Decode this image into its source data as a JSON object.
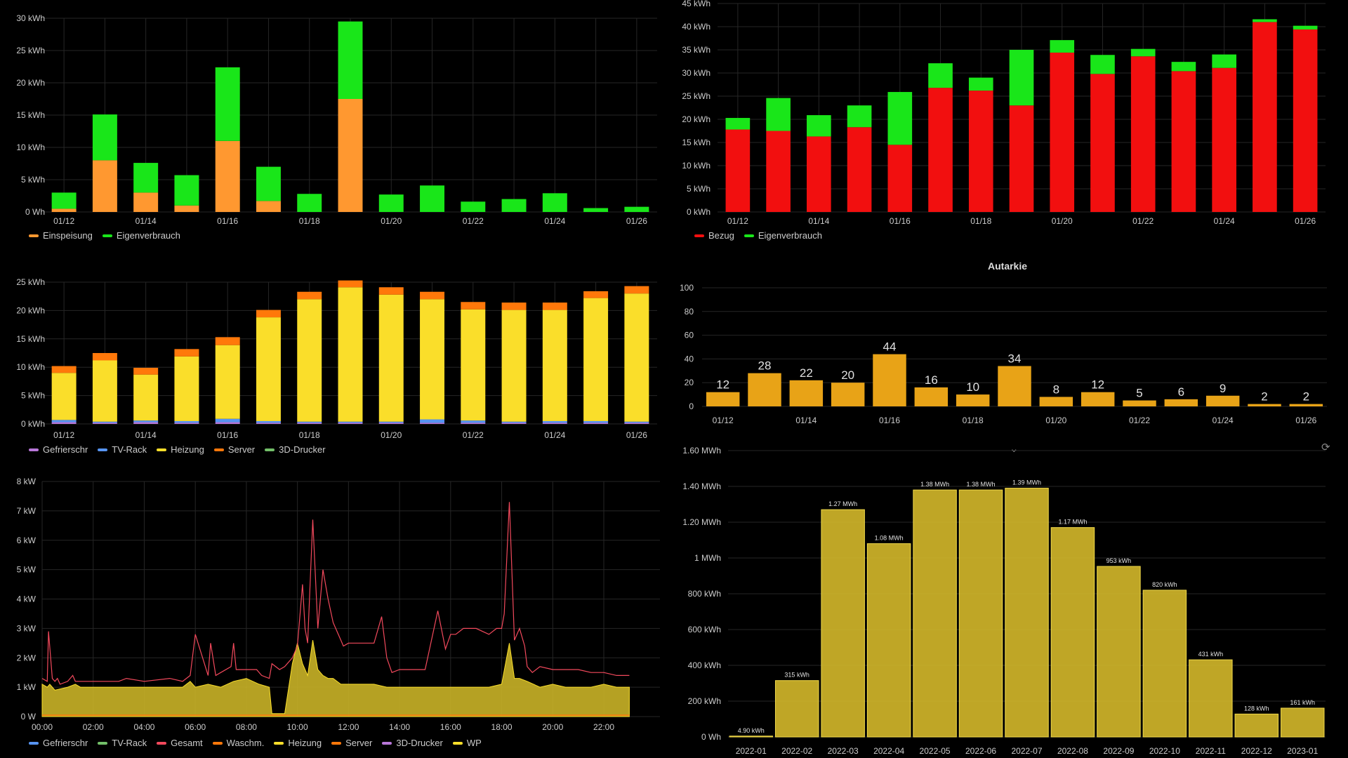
{
  "colors": {
    "grid": "#262626",
    "axis_text": "#cccccc",
    "einspeisung": "#ff9830",
    "eigenverbrauch": "#19e619",
    "bezug": "#f20f0f",
    "gefrierschr": "#b877d9",
    "tv_rack": "#5794f2",
    "heizung": "#fade2a",
    "server": "#ff780a",
    "drucker3d": "#73bf69",
    "gesamt": "#f2495c",
    "autarkie_bar": "#e8a317",
    "monthly_bar": "#d4b82a"
  },
  "icons": {
    "collapse": "chevron-down-icon",
    "refresh": "refresh-icon"
  },
  "chart_data": [
    {
      "id": "pv-daily",
      "type": "bar",
      "stacked": true,
      "categories": [
        "01/12",
        "01/13",
        "01/14",
        "01/15",
        "01/16",
        "01/17",
        "01/18",
        "01/19",
        "01/20",
        "01/21",
        "01/22",
        "01/23",
        "01/24",
        "01/25",
        "01/26"
      ],
      "x_tick_labels": [
        "01/12",
        "",
        "01/14",
        "",
        "01/16",
        "",
        "01/18",
        "",
        "01/20",
        "",
        "01/22",
        "",
        "01/24",
        "",
        "01/26"
      ],
      "y_ticks": [
        "0 Wh",
        "5 kWh",
        "10 kWh",
        "15 kWh",
        "20 kWh",
        "25 kWh",
        "30 kWh"
      ],
      "ylim": [
        0,
        30
      ],
      "grid": true,
      "legend_position": "bottom-left",
      "series": [
        {
          "name": "Einspeisung",
          "color_key": "einspeisung",
          "values": [
            0.5,
            8.0,
            3.0,
            1.0,
            11.0,
            1.7,
            0,
            17.5,
            0,
            0,
            0,
            0,
            0,
            0,
            0
          ]
        },
        {
          "name": "Eigenverbrauch",
          "color_key": "eigenverbrauch",
          "values": [
            2.5,
            7.1,
            4.6,
            4.7,
            11.4,
            5.3,
            2.8,
            12.0,
            2.7,
            4.1,
            1.6,
            2.0,
            2.9,
            0.6,
            0.8
          ]
        }
      ]
    },
    {
      "id": "consumption-daily",
      "type": "bar",
      "stacked": true,
      "categories": [
        "01/12",
        "01/13",
        "01/14",
        "01/15",
        "01/16",
        "01/17",
        "01/18",
        "01/19",
        "01/20",
        "01/21",
        "01/22",
        "01/23",
        "01/24",
        "01/25",
        "01/26"
      ],
      "x_tick_labels": [
        "01/12",
        "",
        "01/14",
        "",
        "01/16",
        "",
        "01/18",
        "",
        "01/20",
        "",
        "01/22",
        "",
        "01/24",
        "",
        "01/26"
      ],
      "y_ticks": [
        "0 kWh",
        "5 kWh",
        "10 kWh",
        "15 kWh",
        "20 kWh",
        "25 kWh",
        "30 kWh",
        "35 kWh",
        "40 kWh",
        "45 kWh"
      ],
      "ylim": [
        0,
        45
      ],
      "grid": true,
      "legend_position": "bottom-left",
      "series": [
        {
          "name": "Bezug",
          "color_key": "bezug",
          "values": [
            17.8,
            17.5,
            16.3,
            18.3,
            14.5,
            26.8,
            26.2,
            23.0,
            34.4,
            29.8,
            33.6,
            30.4,
            31.1,
            41.0,
            39.4
          ]
        },
        {
          "name": "Eigenverbrauch",
          "color_key": "eigenverbrauch",
          "values": [
            2.5,
            7.1,
            4.6,
            4.7,
            11.4,
            5.3,
            2.8,
            12.0,
            2.7,
            4.1,
            1.6,
            2.0,
            2.9,
            0.6,
            0.8
          ]
        }
      ]
    },
    {
      "id": "devices-daily",
      "type": "bar",
      "stacked": true,
      "categories": [
        "01/12",
        "01/13",
        "01/14",
        "01/15",
        "01/16",
        "01/17",
        "01/18",
        "01/19",
        "01/20",
        "01/21",
        "01/22",
        "01/23",
        "01/24",
        "01/25",
        "01/26"
      ],
      "x_tick_labels": [
        "01/12",
        "",
        "01/14",
        "",
        "01/16",
        "",
        "01/18",
        "",
        "01/20",
        "",
        "01/22",
        "",
        "01/24",
        "",
        "01/26"
      ],
      "y_ticks": [
        "0 kWh",
        "5 kWh",
        "10 kWh",
        "15 kWh",
        "20 kWh",
        "25 kWh"
      ],
      "ylim": [
        0,
        25
      ],
      "grid": true,
      "legend_position": "bottom-left",
      "series": [
        {
          "name": "Gefrierschr",
          "color_key": "gefrierschr",
          "values": [
            0.3,
            0.2,
            0.3,
            0.2,
            0.3,
            0.2,
            0.2,
            0.2,
            0.2,
            0.2,
            0.2,
            0.2,
            0.2,
            0.2,
            0.2
          ]
        },
        {
          "name": "TV-Rack",
          "color_key": "tv_rack",
          "values": [
            0.4,
            0.2,
            0.3,
            0.3,
            0.6,
            0.3,
            0.2,
            0.2,
            0.2,
            0.6,
            0.4,
            0.2,
            0.3,
            0.3,
            0.2
          ]
        },
        {
          "name": "Heizung",
          "color_key": "heizung",
          "values": [
            8.3,
            10.8,
            8.1,
            11.4,
            13.0,
            18.3,
            21.6,
            23.7,
            22.4,
            21.2,
            19.6,
            19.7,
            19.6,
            21.7,
            22.6
          ]
        },
        {
          "name": "Server",
          "color_key": "server",
          "values": [
            1.2,
            1.3,
            1.2,
            1.3,
            1.4,
            1.3,
            1.3,
            1.2,
            1.3,
            1.3,
            1.3,
            1.3,
            1.3,
            1.2,
            1.3
          ]
        },
        {
          "name": "3D-Drucker",
          "color_key": "drucker3d",
          "values": [
            0,
            0,
            0,
            0,
            0,
            0,
            0,
            0,
            0,
            0,
            0,
            0,
            0,
            0,
            0
          ]
        }
      ]
    },
    {
      "id": "autarkie",
      "type": "bar",
      "title": "Autarkie",
      "categories": [
        "01/12",
        "01/13",
        "01/14",
        "01/15",
        "01/16",
        "01/17",
        "01/18",
        "01/19",
        "01/20",
        "01/21",
        "01/22",
        "01/23",
        "01/24",
        "01/25",
        "01/26"
      ],
      "x_tick_labels": [
        "01/12",
        "",
        "01/14",
        "",
        "01/16",
        "",
        "01/18",
        "",
        "01/20",
        "",
        "01/22",
        "",
        "01/24",
        "",
        "01/26"
      ],
      "values": [
        12,
        28,
        22,
        20,
        44,
        16,
        10,
        34,
        8,
        12,
        5,
        6,
        9,
        2,
        2
      ],
      "value_labels": [
        "12",
        "28",
        "22",
        "20",
        "44",
        "16",
        "10",
        "34",
        "8",
        "12",
        "5",
        "6",
        "9",
        "2",
        "2"
      ],
      "y_ticks": [
        "0",
        "20",
        "40",
        "60",
        "80",
        "100"
      ],
      "ylim": [
        0,
        100
      ],
      "grid": true
    },
    {
      "id": "power-timeseries",
      "type": "area",
      "x_tick_labels": [
        "00:00",
        "02:00",
        "04:00",
        "06:00",
        "08:00",
        "10:00",
        "12:00",
        "14:00",
        "16:00",
        "18:00",
        "20:00",
        "22:00"
      ],
      "xlim_hours": [
        0,
        24.2
      ],
      "data_end_hour": 23.0,
      "y_ticks": [
        "0 W",
        "1 kW",
        "2 kW",
        "3 kW",
        "4 kW",
        "5 kW",
        "6 kW",
        "7 kW",
        "8 kW"
      ],
      "ylim": [
        0,
        8
      ],
      "grid": true,
      "legend_position": "bottom-left",
      "series": [
        {
          "name": "Gefrierschr",
          "color_key": "tv_rack"
        },
        {
          "name": "TV-Rack",
          "color_key": "drucker3d"
        },
        {
          "name": "Gesamt",
          "color_key": "gesamt",
          "x": [
            0,
            0.2,
            0.25,
            0.4,
            0.5,
            0.6,
            0.7,
            1.0,
            1.2,
            1.3,
            1.5,
            2.0,
            3.0,
            3.3,
            4.0,
            5.0,
            5.5,
            5.8,
            6.0,
            6.5,
            6.6,
            6.8,
            7.0,
            7.4,
            7.5,
            7.6,
            8.0,
            8.4,
            8.6,
            8.9,
            9.0,
            9.3,
            9.5,
            9.8,
            10.0,
            10.2,
            10.3,
            10.4,
            10.6,
            10.8,
            11.0,
            11.2,
            11.4,
            11.7,
            11.8,
            12.0,
            12.5,
            13.0,
            13.3,
            13.5,
            13.7,
            14.0,
            14.5,
            15.0,
            15.5,
            15.8,
            16.0,
            16.2,
            16.5,
            17.0,
            17.5,
            17.8,
            18.0,
            18.1,
            18.3,
            18.5,
            18.7,
            18.9,
            19.0,
            19.2,
            19.5,
            20.0,
            20.5,
            21.0,
            21.5,
            22.0,
            22.5,
            23.0
          ],
          "y": [
            1.3,
            1.2,
            2.9,
            1.3,
            1.2,
            1.3,
            1.1,
            1.2,
            1.4,
            1.2,
            1.2,
            1.2,
            1.2,
            1.3,
            1.2,
            1.3,
            1.2,
            1.4,
            2.8,
            1.4,
            2.5,
            1.4,
            1.5,
            1.7,
            2.5,
            1.6,
            1.6,
            1.6,
            1.4,
            1.3,
            1.8,
            1.6,
            1.7,
            2.0,
            2.4,
            4.5,
            3.0,
            2.5,
            6.7,
            3.0,
            5.0,
            4.0,
            3.2,
            2.6,
            2.4,
            2.5,
            2.5,
            2.5,
            3.4,
            2.0,
            1.5,
            1.6,
            1.6,
            1.6,
            3.6,
            2.3,
            2.8,
            2.8,
            3.0,
            3.0,
            2.8,
            3.0,
            3.0,
            3.5,
            7.3,
            2.6,
            3.0,
            2.4,
            1.7,
            1.5,
            1.7,
            1.6,
            1.6,
            1.6,
            1.5,
            1.5,
            1.4,
            1.4
          ]
        },
        {
          "name": "Waschm.",
          "color_key": "server"
        },
        {
          "name": "Heizung",
          "color_key": "heizung",
          "x": [
            0,
            0.2,
            0.3,
            0.5,
            1.0,
            1.3,
            1.5,
            2.0,
            3.0,
            3.3,
            4.0,
            5.0,
            5.5,
            5.8,
            6.0,
            6.5,
            7.0,
            7.5,
            8.0,
            8.5,
            8.9,
            9.0,
            9.3,
            9.5,
            9.8,
            10.0,
            10.2,
            10.4,
            10.6,
            10.8,
            11.0,
            11.2,
            11.4,
            11.7,
            12.0,
            12.5,
            13.0,
            13.5,
            14.0,
            14.5,
            15.0,
            15.5,
            16.0,
            16.5,
            17.0,
            17.5,
            18.0,
            18.3,
            18.5,
            18.7,
            19.0,
            19.5,
            20.0,
            20.5,
            21.0,
            21.5,
            22.0,
            22.5,
            23.0
          ],
          "y": [
            1.1,
            1.0,
            1.1,
            0.9,
            1.0,
            1.1,
            1.0,
            1.0,
            1.0,
            1.0,
            1.0,
            1.0,
            1.0,
            1.2,
            1.0,
            1.1,
            1.0,
            1.2,
            1.3,
            1.1,
            1.0,
            0.1,
            0.1,
            0.1,
            1.8,
            2.5,
            1.8,
            1.4,
            2.6,
            1.6,
            1.4,
            1.3,
            1.3,
            1.1,
            1.1,
            1.1,
            1.1,
            1.0,
            1.0,
            1.0,
            1.0,
            1.0,
            1.0,
            1.0,
            1.0,
            1.0,
            1.1,
            2.5,
            1.3,
            1.3,
            1.2,
            1.0,
            1.1,
            1.0,
            1.0,
            1.0,
            1.1,
            1.0,
            1.0
          ]
        },
        {
          "name": "Server",
          "color_key": "server"
        },
        {
          "name": "3D-Drucker",
          "color_key": "gefrierschr"
        },
        {
          "name": "WP",
          "color_key": "heizung"
        }
      ]
    },
    {
      "id": "monthly",
      "type": "bar",
      "categories": [
        "2022-01",
        "2022-02",
        "2022-03",
        "2022-04",
        "2022-05",
        "2022-06",
        "2022-07",
        "2022-08",
        "2022-09",
        "2022-10",
        "2022-11",
        "2022-12",
        "2023-01"
      ],
      "values_kwh": [
        4.9,
        315,
        1270,
        1080,
        1380,
        1380,
        1390,
        1170,
        953,
        820,
        431,
        128,
        161
      ],
      "value_labels": [
        "4.90 kWh",
        "315 kWh",
        "1.27 MWh",
        "1.08 MWh",
        "1.38 MWh",
        "1.38 MWh",
        "1.39 MWh",
        "1.17 MWh",
        "953 kWh",
        "820 kWh",
        "431 kWh",
        "128 kWh",
        "161 kWh"
      ],
      "y_ticks": [
        "0 Wh",
        "200 kWh",
        "400 kWh",
        "600 kWh",
        "800 kWh",
        "1 MWh",
        "1.20 MWh",
        "1.40 MWh",
        "1.60 MWh"
      ],
      "ylim": [
        0,
        1600
      ],
      "grid": true
    }
  ]
}
